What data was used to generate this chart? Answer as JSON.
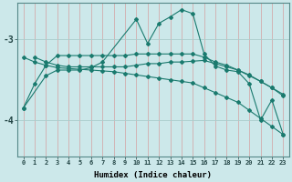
{
  "xlabel": "Humidex (Indice chaleur)",
  "bg_color": "#cce8ea",
  "vgrid_color": "#d4a0a0",
  "hgrid_color": "#aacccc",
  "line_color": "#1a7a6e",
  "xlim": [
    -0.5,
    23.5
  ],
  "ylim": [
    -4.45,
    -2.55
  ],
  "yticks": [
    -4,
    -3
  ],
  "ytick_labels": [
    "-4",
    "-3"
  ],
  "xticks": [
    0,
    1,
    2,
    3,
    4,
    5,
    6,
    7,
    8,
    9,
    10,
    11,
    12,
    13,
    14,
    15,
    16,
    17,
    18,
    19,
    20,
    21,
    22,
    23
  ],
  "series1_x": [
    0,
    1,
    2,
    3,
    4,
    5,
    6,
    7,
    8,
    9,
    10,
    11,
    12,
    13,
    14,
    15,
    16,
    17,
    18,
    19,
    20,
    21,
    22,
    23
  ],
  "series1_y": [
    -3.85,
    -3.55,
    -3.32,
    -3.2,
    -3.2,
    -3.2,
    -3.2,
    -3.2,
    -3.2,
    -3.2,
    -3.18,
    -3.18,
    -3.18,
    -3.18,
    -3.18,
    -3.18,
    -3.22,
    -3.28,
    -3.32,
    -3.38,
    -3.45,
    -3.52,
    -3.6,
    -3.68
  ],
  "series2_x": [
    1,
    2,
    3,
    4,
    5,
    6,
    7,
    8,
    9,
    10,
    11,
    12,
    13,
    14,
    15,
    16,
    17,
    18,
    19,
    20,
    21,
    22,
    23
  ],
  "series2_y": [
    -3.22,
    -3.28,
    -3.32,
    -3.34,
    -3.34,
    -3.34,
    -3.34,
    -3.34,
    -3.34,
    -3.32,
    -3.3,
    -3.3,
    -3.28,
    -3.28,
    -3.27,
    -3.26,
    -3.3,
    -3.34,
    -3.38,
    -3.44,
    -3.52,
    -3.6,
    -3.7
  ],
  "series3_x": [
    0,
    1,
    2,
    3,
    4,
    5,
    6,
    7,
    8,
    9,
    10,
    11,
    12,
    13,
    14,
    15,
    16,
    17,
    18,
    19,
    20,
    21,
    22,
    23
  ],
  "series3_y": [
    -3.22,
    -3.28,
    -3.32,
    -3.35,
    -3.36,
    -3.37,
    -3.38,
    -3.39,
    -3.4,
    -3.42,
    -3.44,
    -3.46,
    -3.48,
    -3.5,
    -3.52,
    -3.54,
    -3.6,
    -3.66,
    -3.72,
    -3.78,
    -3.88,
    -3.98,
    -4.08,
    -4.18
  ],
  "series4_x": [
    0,
    2,
    3,
    4,
    5,
    6,
    7,
    10,
    11,
    12,
    13,
    14,
    15,
    16,
    17,
    18,
    19,
    20,
    21,
    22,
    23
  ],
  "series4_y": [
    -3.85,
    -3.45,
    -3.38,
    -3.38,
    -3.38,
    -3.35,
    -3.28,
    -2.75,
    -3.05,
    -2.8,
    -2.72,
    -2.63,
    -2.68,
    -3.18,
    -3.33,
    -3.38,
    -3.4,
    -3.55,
    -4.0,
    -3.75,
    -4.18
  ]
}
